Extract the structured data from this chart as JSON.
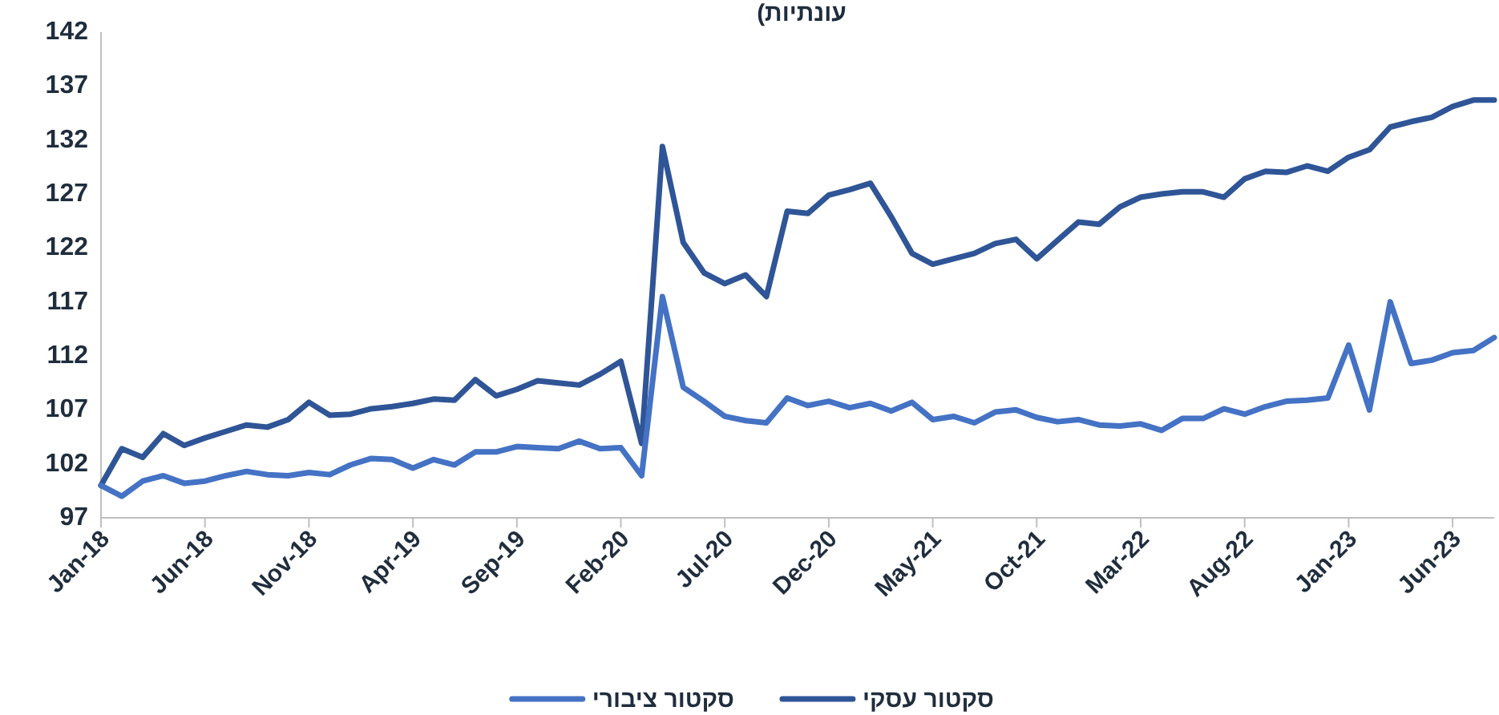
{
  "chart_data": {
    "type": "line",
    "title": "עונתיות)",
    "x": [
      "2018-01",
      "2018-02",
      "2018-03",
      "2018-04",
      "2018-05",
      "2018-06",
      "2018-07",
      "2018-08",
      "2018-09",
      "2018-10",
      "2018-11",
      "2018-12",
      "2019-01",
      "2019-02",
      "2019-03",
      "2019-04",
      "2019-05",
      "2019-06",
      "2019-07",
      "2019-08",
      "2019-09",
      "2019-10",
      "2019-11",
      "2019-12",
      "2020-01",
      "2020-02",
      "2020-03",
      "2020-04",
      "2020-05",
      "2020-06",
      "2020-07",
      "2020-08",
      "2020-09",
      "2020-10",
      "2020-11",
      "2020-12",
      "2021-01",
      "2021-02",
      "2021-03",
      "2021-04",
      "2021-05",
      "2021-06",
      "2021-07",
      "2021-08",
      "2021-09",
      "2021-10",
      "2021-11",
      "2021-12",
      "2022-01",
      "2022-02",
      "2022-03",
      "2022-04",
      "2022-05",
      "2022-06",
      "2022-07",
      "2022-08",
      "2022-09",
      "2022-10",
      "2022-11",
      "2022-12",
      "2023-01",
      "2023-02",
      "2023-03",
      "2023-04",
      "2023-05",
      "2023-06",
      "2023-07",
      "2023-08"
    ],
    "xlim": [
      "2018-01",
      "2023-08"
    ],
    "xticks": [
      {
        "value": "2018-01",
        "label": "Jan-18"
      },
      {
        "value": "2018-06",
        "label": "Jun-18"
      },
      {
        "value": "2018-11",
        "label": "Nov-18"
      },
      {
        "value": "2019-04",
        "label": "Apr-19"
      },
      {
        "value": "2019-09",
        "label": "Sep-19"
      },
      {
        "value": "2020-02",
        "label": "Feb-20"
      },
      {
        "value": "2020-07",
        "label": "Jul-20"
      },
      {
        "value": "2020-12",
        "label": "Dec-20"
      },
      {
        "value": "2021-05",
        "label": "May-21"
      },
      {
        "value": "2021-10",
        "label": "Oct-21"
      },
      {
        "value": "2022-03",
        "label": "Mar-22"
      },
      {
        "value": "2022-08",
        "label": "Aug-22"
      },
      {
        "value": "2023-01",
        "label": "Jan-23"
      },
      {
        "value": "2023-06",
        "label": "Jun-23"
      }
    ],
    "ylim": [
      97,
      142
    ],
    "yticks": [
      97,
      102,
      107,
      112,
      117,
      122,
      127,
      132,
      137,
      142
    ],
    "legend": "bottom",
    "series": [
      {
        "name": "סקטור עסקי",
        "color": "#2f5597",
        "values": [
          100,
          103.4,
          102.6,
          104.8,
          103.7,
          104.4,
          105.0,
          105.6,
          105.4,
          106.1,
          107.7,
          106.5,
          106.6,
          107.1,
          107.3,
          107.6,
          108.0,
          107.9,
          109.8,
          108.3,
          108.9,
          109.7,
          109.5,
          109.3,
          110.3,
          111.5,
          103.9,
          131.4,
          122.5,
          119.7,
          118.7,
          119.5,
          117.5,
          125.4,
          125.2,
          126.9,
          127.4,
          128.0,
          124.9,
          121.5,
          120.5,
          121.0,
          121.5,
          122.4,
          122.8,
          121.0,
          122.7,
          124.4,
          124.2,
          125.8,
          126.7,
          127.0,
          127.2,
          127.2,
          126.7,
          128.4,
          129.1,
          129.0,
          129.6,
          129.1,
          130.4,
          131.1,
          133.2,
          133.7,
          134.1,
          135.1,
          135.7,
          135.7
        ]
      },
      {
        "name": "סקטור ציבורי",
        "color": "#4472c4",
        "values": [
          100,
          99.0,
          100.4,
          100.9,
          100.2,
          100.4,
          100.9,
          101.3,
          101.0,
          100.9,
          101.2,
          101.0,
          101.9,
          102.5,
          102.4,
          101.6,
          102.4,
          101.9,
          103.1,
          103.1,
          103.6,
          103.5,
          103.4,
          104.1,
          103.4,
          103.5,
          100.9,
          117.5,
          109.1,
          107.8,
          106.4,
          106.0,
          105.8,
          108.1,
          107.4,
          107.8,
          107.2,
          107.6,
          106.9,
          107.7,
          106.1,
          106.4,
          105.8,
          106.8,
          107.0,
          106.3,
          105.9,
          106.1,
          105.6,
          105.5,
          105.7,
          105.1,
          106.2,
          106.2,
          107.1,
          106.6,
          107.3,
          107.8,
          107.9,
          108.1,
          113.0,
          107.0,
          117.0,
          111.3,
          111.6,
          112.3,
          112.5,
          113.7
        ]
      }
    ]
  }
}
